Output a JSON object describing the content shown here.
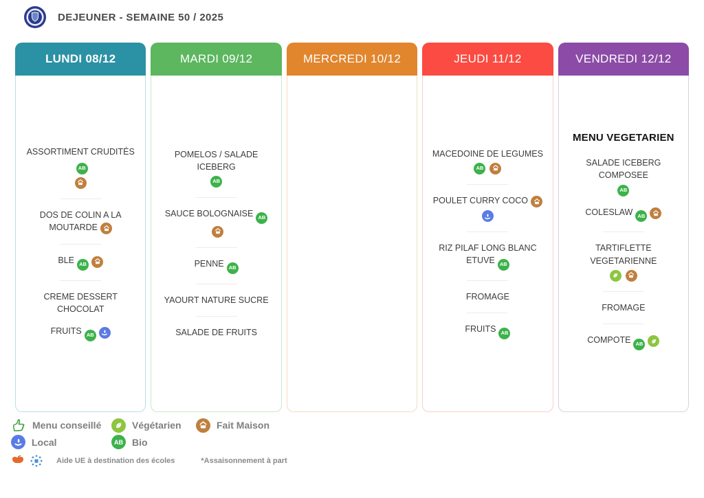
{
  "app": {
    "title": "DEJEUNER - SEMAINE 50 / 2025"
  },
  "badge_defs": {
    "bio": {
      "label": "Bio",
      "color": "#3DB24B",
      "glyph": "AB"
    },
    "fm": {
      "label": "Fait Maison",
      "color": "#C07F3E"
    },
    "local": {
      "label": "Local",
      "color": "#5B7BE4"
    },
    "veg": {
      "label": "Végétarien",
      "color": "#8CC63F"
    },
    "thumb": {
      "label": "Menu conseillé",
      "color": "#3F9E3F"
    }
  },
  "columns": [
    {
      "day": "LUNDI 08/12",
      "header_color": "#2B91A5",
      "border_color": "#B9DEE6",
      "header_bold": true,
      "items": [
        {
          "text": "ASSORTIMENT CRUDITÉS",
          "inline": [
            "bio"
          ],
          "below": [
            "fm"
          ],
          "sep_after": true
        },
        {
          "text": "DOS DE COLIN A LA MOUTARDE",
          "inline": [
            "fm"
          ],
          "sep_after": true
        },
        {
          "text": "BLE",
          "inline": [
            "bio",
            "fm"
          ],
          "sep_after": true
        },
        {
          "text": "CREME DESSERT CHOCOLAT"
        },
        {
          "text": "FRUITS",
          "inline": [
            "bio",
            "local"
          ]
        }
      ]
    },
    {
      "day": "MARDI 09/12",
      "header_color": "#5CB75F",
      "border_color": "#C9E7CB",
      "header_bold": false,
      "items": [
        {
          "text": "POMELOS / SALADE ICEBERG",
          "below": [
            "bio"
          ],
          "sep_after": true
        },
        {
          "text": "SAUCE BOLOGNAISE",
          "inline": [
            "bio",
            "fm"
          ],
          "sep_after": true
        },
        {
          "text": "PENNE",
          "inline": [
            "bio"
          ],
          "sep_after": true
        },
        {
          "text": "YAOURT NATURE SUCRE",
          "sep_after": true
        },
        {
          "text": "SALADE DE FRUITS"
        }
      ]
    },
    {
      "day": "MERCREDI 10/12",
      "header_color": "#E1862D",
      "border_color": "#F1DEC2",
      "header_bold": false,
      "items": []
    },
    {
      "day": "JEUDI 11/12",
      "header_color": "#FB4B42",
      "border_color": "#F8CFCC",
      "header_bold": false,
      "items": [
        {
          "text": "MACEDOINE DE LEGUMES",
          "below": [
            "bio",
            "fm"
          ],
          "sep_after": true
        },
        {
          "text": "POULET CURRY COCO",
          "inline": [
            "fm"
          ],
          "below": [
            "local"
          ],
          "sep_after": true
        },
        {
          "text": "RIZ PILAF LONG BLANC ETUVE",
          "inline": [
            "bio"
          ],
          "sep_after": true
        },
        {
          "text": "FROMAGE",
          "sep_after": true
        },
        {
          "text": "FRUITS",
          "inline": [
            "bio"
          ]
        }
      ]
    },
    {
      "day": "VENDREDI 12/12",
      "header_color": "#8C4BA6",
      "border_color": "#D8D0DF",
      "header_bold": false,
      "heading": "MENU VEGETARIEN",
      "items": [
        {
          "text": "SALADE ICEBERG COMPOSEE",
          "below": [
            "bio"
          ]
        },
        {
          "text": "COLESLAW",
          "inline": [
            "bio",
            "fm"
          ],
          "sep_after": true
        },
        {
          "text": "TARTIFLETTE VEGETARIENNE",
          "below": [
            "veg",
            "fm"
          ],
          "sep_after": true
        },
        {
          "text": "FROMAGE",
          "sep_after": true
        },
        {
          "text": "COMPOTE",
          "inline": [
            "bio",
            "veg"
          ]
        }
      ]
    }
  ],
  "legend": {
    "rows": [
      [
        {
          "icon": "thumb",
          "label": "Menu conseillé"
        },
        {
          "icon": "veg",
          "label": "Végétarien"
        },
        {
          "icon": "fm",
          "label": "Fait Maison"
        }
      ],
      [
        {
          "icon": "local",
          "label": "Local"
        },
        {
          "icon": "bio",
          "label": "Bio"
        }
      ]
    ],
    "footnote": {
      "icons": [
        "fruit",
        "eu"
      ],
      "text": "Aide UE à destination des écoles",
      "note": "*Assaisonnement à part"
    }
  }
}
